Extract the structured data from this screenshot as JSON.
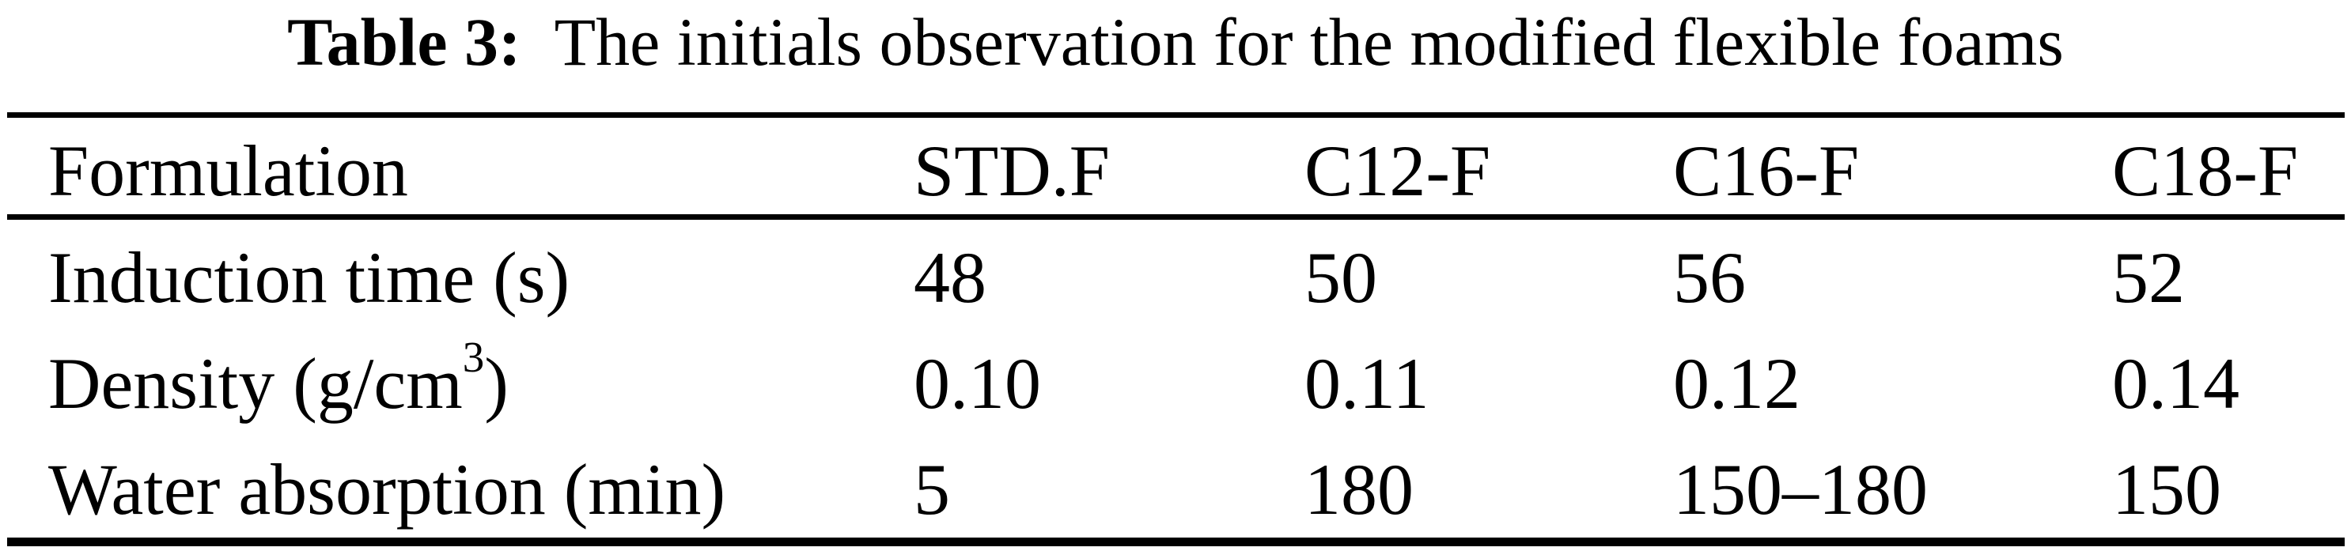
{
  "caption": {
    "number": "Table 3:",
    "text": "The initials observation for the modified flexible foams"
  },
  "table": {
    "header": [
      "Formulation",
      "STD.F",
      "C12-F",
      "C16-F",
      "C18-F"
    ],
    "rows": [
      {
        "label_prefix": "Induction time (s)",
        "label_sup": "",
        "label_suffix": "",
        "values": [
          "48",
          "50",
          "56",
          "52"
        ]
      },
      {
        "label_prefix": "Density (g/cm",
        "label_sup": "3",
        "label_suffix": ")",
        "values": [
          "0.10",
          "0.11",
          "0.12",
          "0.14"
        ]
      },
      {
        "label_prefix": "Water absorption (min)",
        "label_sup": "",
        "label_suffix": "",
        "values": [
          "5",
          "180",
          "150–180",
          "150"
        ]
      }
    ]
  },
  "colors": {
    "text": "#000000",
    "background": "#ffffff",
    "rule": "#000000"
  }
}
